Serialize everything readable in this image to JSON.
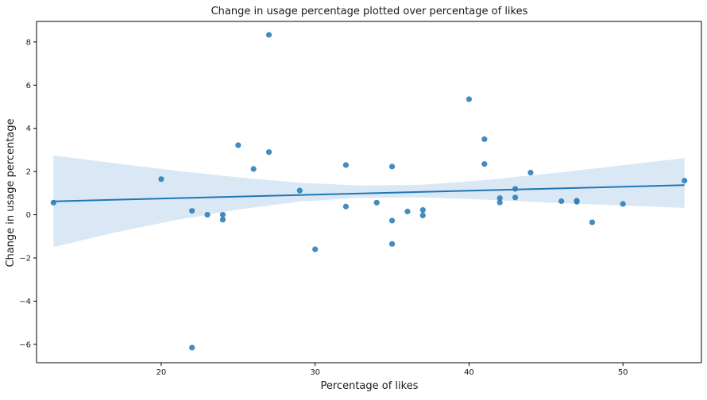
{
  "chart_data": {
    "type": "scatter",
    "title": "Change in usage percentage plotted over percentage of likes",
    "xlabel": "Percentage of likes",
    "ylabel": "Change in usage percentage",
    "xlim": [
      11.9,
      55.1
    ],
    "ylim": [
      -6.85,
      8.95
    ],
    "xticks": [
      20,
      30,
      40,
      50
    ],
    "yticks": [
      -6,
      -4,
      -2,
      0,
      2,
      4,
      6,
      8
    ],
    "grid": false,
    "colors": {
      "points": "#2d7fb8",
      "regression_line": "#1f77b4",
      "confidence_band": "#c6dbef"
    },
    "points": [
      {
        "x": 13,
        "y": 0.56
      },
      {
        "x": 20,
        "y": 1.65
      },
      {
        "x": 22,
        "y": 0.18
      },
      {
        "x": 22,
        "y": -6.15
      },
      {
        "x": 23,
        "y": 0.0
      },
      {
        "x": 24,
        "y": 0.0
      },
      {
        "x": 24,
        "y": -0.23
      },
      {
        "x": 25,
        "y": 3.22
      },
      {
        "x": 26,
        "y": 2.12
      },
      {
        "x": 27,
        "y": 8.33
      },
      {
        "x": 27,
        "y": 2.9
      },
      {
        "x": 29,
        "y": 1.12
      },
      {
        "x": 30,
        "y": -1.6
      },
      {
        "x": 32,
        "y": 2.3
      },
      {
        "x": 32,
        "y": 0.38
      },
      {
        "x": 34,
        "y": 0.56
      },
      {
        "x": 35,
        "y": 2.23
      },
      {
        "x": 35,
        "y": -0.27
      },
      {
        "x": 35,
        "y": -1.35
      },
      {
        "x": 36,
        "y": 0.15
      },
      {
        "x": 37,
        "y": 0.22
      },
      {
        "x": 37,
        "y": -0.03
      },
      {
        "x": 40,
        "y": 5.35
      },
      {
        "x": 41,
        "y": 3.5
      },
      {
        "x": 41,
        "y": 2.35
      },
      {
        "x": 42,
        "y": 0.77
      },
      {
        "x": 42,
        "y": 0.57
      },
      {
        "x": 43,
        "y": 1.2
      },
      {
        "x": 43,
        "y": 0.8
      },
      {
        "x": 44,
        "y": 1.95
      },
      {
        "x": 46,
        "y": 0.63
      },
      {
        "x": 47,
        "y": 0.65
      },
      {
        "x": 47,
        "y": 0.6
      },
      {
        "x": 48,
        "y": -0.35
      },
      {
        "x": 50,
        "y": 0.5
      },
      {
        "x": 54,
        "y": 1.58
      }
    ],
    "regression": {
      "x": [
        13,
        54
      ],
      "y": [
        0.62,
        1.37
      ]
    },
    "confidence_band": {
      "x": [
        13,
        17,
        21,
        25,
        29,
        33,
        37,
        41,
        45,
        49,
        54
      ],
      "upper": [
        2.75,
        2.38,
        2.04,
        1.73,
        1.48,
        1.35,
        1.39,
        1.6,
        1.89,
        2.21,
        2.62
      ],
      "lower": [
        -1.5,
        -0.82,
        -0.24,
        0.24,
        0.61,
        0.79,
        0.8,
        0.7,
        0.57,
        0.45,
        0.32
      ]
    }
  }
}
